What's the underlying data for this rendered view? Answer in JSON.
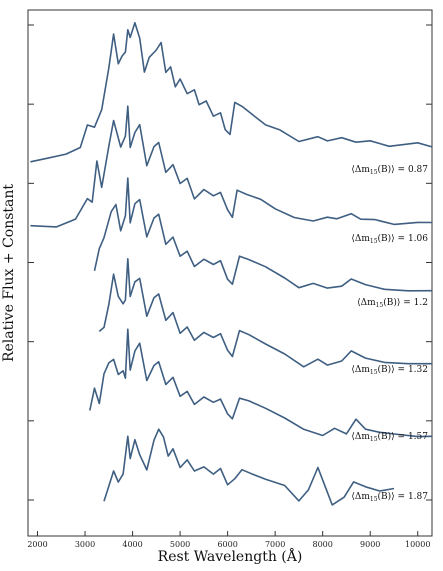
{
  "chart_data": {
    "type": "line",
    "xlabel": "Rest Wavelength (Å)",
    "ylabel": "Relative Flux + Constant",
    "xlim": [
      1800,
      10300
    ],
    "x_ticks": [
      2000,
      3000,
      4000,
      5000,
      6000,
      7000,
      8000,
      9000,
      10000
    ],
    "x_tick_labels": [
      "2000",
      "3000",
      "4000",
      "5000",
      "6000",
      "7000",
      "8000",
      "9000",
      "10000"
    ],
    "y_ticks_count": 7,
    "grid": false,
    "line_color": "#3f5f82",
    "series": [
      {
        "annotation": {
          "prefix": "⟨Δm",
          "sub": "15",
          "mid": "(B)⟩ = ",
          "value": "0.87"
        },
        "x": [
          1850,
          2200,
          2600,
          2900,
          3050,
          3200,
          3350,
          3500,
          3600,
          3700,
          3780,
          3850,
          3900,
          3950,
          4050,
          4150,
          4250,
          4350,
          4500,
          4600,
          4700,
          4800,
          4900,
          5000,
          5150,
          5300,
          5400,
          5550,
          5700,
          5850,
          5950,
          6050,
          6150,
          6300,
          6500,
          6800,
          7100,
          7500,
          7900,
          8100,
          8400,
          8700,
          9000,
          9400,
          10000,
          10300
        ],
        "y": [
          0.35,
          0.4,
          0.46,
          0.55,
          0.85,
          0.82,
          1.05,
          1.6,
          2.05,
          1.65,
          1.75,
          1.8,
          2.1,
          2.0,
          2.2,
          2.0,
          1.55,
          1.75,
          1.85,
          1.95,
          1.55,
          1.62,
          1.35,
          1.45,
          1.25,
          1.3,
          1.1,
          1.15,
          0.95,
          1.0,
          0.78,
          0.72,
          1.15,
          1.1,
          1.0,
          0.85,
          0.78,
          0.62,
          0.68,
          0.62,
          0.66,
          0.6,
          0.62,
          0.55,
          0.6,
          0.55
        ]
      },
      {
        "annotation": {
          "prefix": "⟨Δm",
          "sub": "15",
          "mid": "(B)⟩ = ",
          "value": "1.06"
        },
        "x": [
          1850,
          2400,
          2800,
          3050,
          3150,
          3250,
          3350,
          3500,
          3600,
          3750,
          3850,
          3900,
          3950,
          4050,
          4150,
          4300,
          4450,
          4550,
          4700,
          4850,
          5000,
          5150,
          5300,
          5500,
          5700,
          5850,
          6000,
          6100,
          6200,
          6400,
          6700,
          7000,
          7400,
          7800,
          8100,
          8300,
          8600,
          8800,
          9100,
          9500,
          10000,
          10300
        ],
        "y": [
          0.5,
          0.48,
          0.58,
          0.85,
          0.8,
          1.35,
          1.0,
          1.55,
          1.9,
          1.55,
          1.7,
          2.1,
          1.55,
          1.75,
          1.85,
          1.3,
          1.55,
          1.6,
          1.2,
          1.3,
          1.05,
          1.12,
          0.85,
          0.98,
          0.9,
          0.95,
          0.72,
          0.62,
          0.98,
          0.92,
          0.85,
          0.72,
          0.6,
          0.55,
          0.6,
          0.58,
          0.65,
          0.58,
          0.58,
          0.52,
          0.55,
          0.55
        ]
      },
      {
        "annotation": {
          "prefix": "⟨Δm",
          "sub": "15",
          "mid": "(B)⟩ = ",
          "value": "1.2"
        },
        "x": [
          3200,
          3300,
          3400,
          3550,
          3650,
          3750,
          3850,
          3900,
          3950,
          4050,
          4150,
          4300,
          4450,
          4550,
          4700,
          4850,
          5000,
          5150,
          5300,
          5500,
          5700,
          5850,
          6000,
          6100,
          6250,
          6450,
          6800,
          7200,
          7500,
          7800,
          8100,
          8400,
          8600,
          8900,
          9300,
          9800,
          10300
        ],
        "y": [
          0.65,
          0.95,
          1.1,
          1.45,
          1.55,
          1.2,
          1.4,
          1.9,
          1.3,
          1.55,
          1.6,
          1.1,
          1.35,
          1.4,
          1.0,
          1.1,
          0.85,
          0.92,
          0.72,
          0.82,
          0.75,
          0.8,
          0.55,
          0.48,
          0.85,
          0.8,
          0.7,
          0.55,
          0.42,
          0.48,
          0.42,
          0.45,
          0.55,
          0.48,
          0.42,
          0.4,
          0.4
        ]
      },
      {
        "annotation": {
          "prefix": "⟨Δm",
          "sub": "15",
          "mid": "(B)⟩ = ",
          "value": "1.32"
        },
        "x": [
          3300,
          3400,
          3500,
          3600,
          3700,
          3800,
          3850,
          3900,
          3950,
          4050,
          4150,
          4300,
          4450,
          4550,
          4700,
          4850,
          5000,
          5150,
          5300,
          5500,
          5700,
          5850,
          6000,
          6100,
          6250,
          6450,
          6800,
          7200,
          7600,
          7900,
          8100,
          8400,
          8600,
          8900,
          9300,
          9800,
          10300
        ],
        "y": [
          0.75,
          0.8,
          1.1,
          1.5,
          1.2,
          1.1,
          1.15,
          1.7,
          1.2,
          1.4,
          1.45,
          0.95,
          1.2,
          1.25,
          0.9,
          1.0,
          0.72,
          0.8,
          0.62,
          0.72,
          0.65,
          0.7,
          0.48,
          0.4,
          0.75,
          0.7,
          0.58,
          0.45,
          0.28,
          0.38,
          0.3,
          0.35,
          0.48,
          0.38,
          0.32,
          0.3,
          0.3
        ]
      },
      {
        "annotation": {
          "prefix": "⟨Δm",
          "sub": "15",
          "mid": "(B)⟩ = ",
          "value": "1.57"
        },
        "x": [
          3100,
          3200,
          3300,
          3400,
          3500,
          3600,
          3700,
          3800,
          3850,
          3900,
          3950,
          4050,
          4150,
          4300,
          4450,
          4550,
          4700,
          4850,
          5000,
          5150,
          5300,
          5500,
          5700,
          5850,
          6000,
          6100,
          6250,
          6450,
          6800,
          7200,
          7600,
          8000,
          8250,
          8500,
          8700,
          8900,
          9200,
          9600,
          10000,
          10300
        ],
        "y": [
          0.45,
          0.75,
          0.55,
          0.95,
          1.1,
          1.15,
          0.95,
          1.0,
          0.9,
          1.55,
          1.0,
          1.25,
          1.35,
          0.85,
          1.05,
          1.1,
          0.8,
          0.9,
          0.65,
          0.72,
          0.55,
          0.65,
          0.58,
          0.62,
          0.42,
          0.35,
          0.62,
          0.58,
          0.48,
          0.35,
          0.2,
          0.12,
          0.22,
          0.15,
          0.35,
          0.22,
          0.18,
          0.15,
          0.12,
          0.12
        ]
      },
      {
        "annotation": {
          "prefix": "⟨Δm",
          "sub": "15",
          "mid": "(B)⟩ = ",
          "value": "1.87"
        },
        "x": [
          3400,
          3500,
          3600,
          3700,
          3800,
          3900,
          3950,
          4050,
          4150,
          4300,
          4450,
          4550,
          4650,
          4750,
          4850,
          5000,
          5150,
          5300,
          5500,
          5700,
          5850,
          6000,
          6150,
          6300,
          6500,
          6800,
          7200,
          7500,
          7700,
          7900,
          8050,
          8200,
          8450,
          8650,
          8900,
          9200,
          9500
        ],
        "y": [
          0.1,
          0.3,
          0.5,
          0.35,
          0.45,
          0.95,
          0.65,
          0.9,
          0.7,
          0.5,
          0.9,
          1.05,
          0.95,
          0.7,
          0.8,
          0.55,
          0.65,
          0.5,
          0.55,
          0.45,
          0.52,
          0.3,
          0.38,
          0.5,
          0.45,
          0.38,
          0.3,
          0.1,
          0.25,
          0.55,
          0.3,
          0.05,
          0.15,
          0.35,
          0.28,
          0.22,
          0.25
        ]
      }
    ]
  }
}
